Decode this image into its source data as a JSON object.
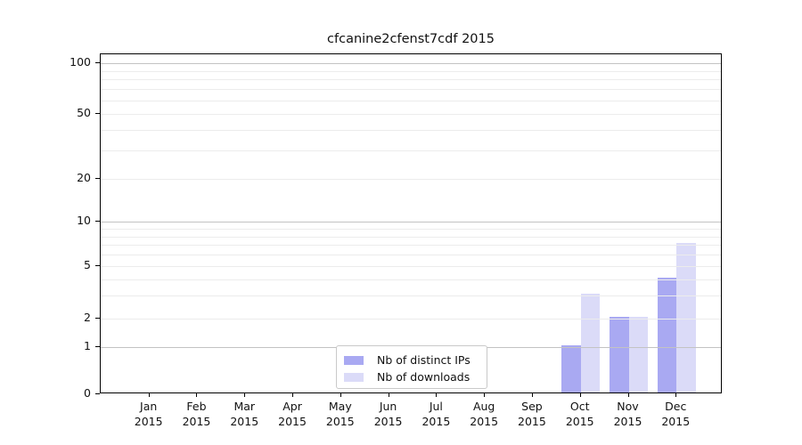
{
  "title": "cfcanine2cfenst7cdf 2015",
  "colors": {
    "distinct_ips": "#a9a9f2",
    "downloads": "#dbdbf8",
    "grid_major": "#c3c3c3",
    "grid_minor": "#ececec",
    "spine": "#000000",
    "text": "#111111"
  },
  "legend": {
    "items": [
      {
        "label": "Nb of distinct IPs",
        "color_key": "distinct_ips"
      },
      {
        "label": "Nb of downloads",
        "color_key": "downloads"
      }
    ],
    "position": "lower center"
  },
  "chart_data": {
    "type": "bar",
    "title": "cfcanine2cfenst7cdf 2015",
    "categories": [
      "Jan",
      "Feb",
      "Mar",
      "Apr",
      "May",
      "Jun",
      "Jul",
      "Aug",
      "Sep",
      "Oct",
      "Nov",
      "Dec"
    ],
    "category_year_line": "2015",
    "series": [
      {
        "name": "Nb of distinct IPs",
        "color_key": "distinct_ips",
        "values": [
          0,
          0,
          0,
          0,
          0,
          0,
          0,
          0,
          0,
          1,
          2,
          4
        ]
      },
      {
        "name": "Nb of downloads",
        "color_key": "downloads",
        "values": [
          0,
          0,
          0,
          0,
          0,
          0,
          0,
          0,
          0,
          3,
          2,
          7
        ]
      }
    ],
    "xlabel": "",
    "ylabel": "",
    "ylim": [
      0,
      115
    ],
    "grid": true,
    "legend_position": "lower center",
    "y_axis_scale": "log-like with linear 0-1 segment",
    "y_ticks_labeled": [
      0,
      1,
      2,
      5,
      10,
      20,
      50,
      100
    ],
    "y_grid_major": [
      1,
      10,
      100
    ],
    "y_grid_minor": [
      2,
      3,
      4,
      5,
      6,
      7,
      8,
      9,
      20,
      30,
      40,
      50,
      60,
      70,
      80,
      90
    ],
    "y_scale_points": [
      {
        "v": 0,
        "f": 0.0
      },
      {
        "v": 1,
        "f": 0.1437
      },
      {
        "v": 2,
        "f": 0.2287
      },
      {
        "v": 5,
        "f": 0.3858
      },
      {
        "v": 10,
        "f": 0.5203
      },
      {
        "v": 20,
        "f": 0.6503
      },
      {
        "v": 50,
        "f": 0.8475
      },
      {
        "v": 100,
        "f": 1.0
      }
    ]
  }
}
